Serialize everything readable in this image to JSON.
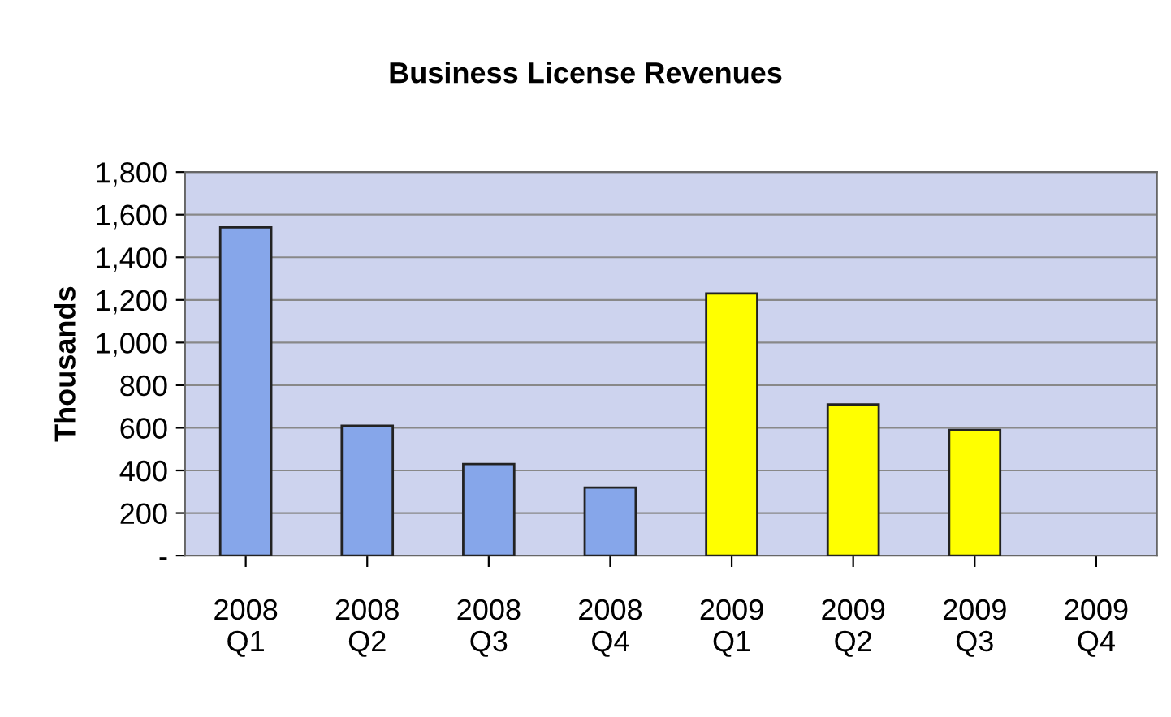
{
  "chart_data": {
    "type": "bar",
    "title": "Business License Revenues",
    "ylabel": "Thousands",
    "categories": [
      "2008\nQ1",
      "2008\nQ2",
      "2008\nQ3",
      "2008\nQ4",
      "2009\nQ1",
      "2009\nQ2",
      "2009\nQ3",
      "2009\nQ4"
    ],
    "values": [
      1540,
      610,
      430,
      320,
      1230,
      710,
      590,
      null
    ],
    "colors": [
      "#86a6ea",
      "#86a6ea",
      "#86a6ea",
      "#86a6ea",
      "#ffff00",
      "#ffff00",
      "#ffff00",
      "#ffff00"
    ],
    "ylim": [
      0,
      1800
    ],
    "yticks": [
      {
        "value": 0,
        "label": "-"
      },
      {
        "value": 200,
        "label": "200"
      },
      {
        "value": 400,
        "label": "400"
      },
      {
        "value": 600,
        "label": "600"
      },
      {
        "value": 800,
        "label": "800"
      },
      {
        "value": 1000,
        "label": "1,000"
      },
      {
        "value": 1200,
        "label": "1,200"
      },
      {
        "value": 1400,
        "label": "1,400"
      },
      {
        "value": 1600,
        "label": "1,600"
      },
      {
        "value": 1800,
        "label": "1,800"
      }
    ],
    "grid": "y",
    "legend": false
  }
}
